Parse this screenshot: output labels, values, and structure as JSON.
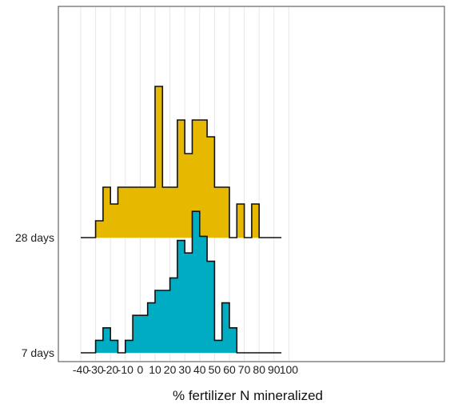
{
  "chart_data": {
    "type": "area",
    "title": "",
    "xlabel": "% fertilizer N mineralized",
    "ylabel": "",
    "xlim": [
      -45,
      105
    ],
    "x_ticks": [
      -40,
      -30,
      -20,
      -10,
      0,
      10,
      20,
      30,
      40,
      50,
      60,
      70,
      80,
      90,
      100
    ],
    "x_tick_labels": [
      "-40",
      "-30",
      "-20",
      "-10",
      "0",
      "10",
      "20",
      "30",
      "40",
      "50",
      "60",
      "70",
      "80",
      "90",
      "100"
    ],
    "grid": true,
    "legend": "none",
    "bin_edges": [
      -30,
      -25,
      -20,
      -15,
      -10,
      -5,
      0,
      5,
      10,
      15,
      20,
      25,
      30,
      35,
      40,
      45,
      50,
      55,
      60,
      65,
      70,
      75,
      80,
      85,
      90,
      95
    ],
    "line_start": -40,
    "line_end": 95,
    "series": [
      {
        "name": "28 days",
        "color": "#e6b800",
        "values": [
          1,
          3,
          2,
          3,
          3,
          3,
          3,
          3,
          9,
          3,
          3,
          7,
          5,
          7,
          7,
          6,
          3,
          3,
          0,
          2,
          0,
          2,
          0,
          0,
          0
        ]
      },
      {
        "name": "7 days",
        "color": "#00acc1",
        "values": [
          1.5,
          3,
          1.5,
          0,
          1.5,
          4.5,
          4.5,
          6,
          7.5,
          7.5,
          9,
          13.5,
          12,
          17,
          14,
          11,
          1.5,
          6,
          3,
          0,
          0,
          0,
          0,
          0,
          0
        ]
      }
    ]
  }
}
